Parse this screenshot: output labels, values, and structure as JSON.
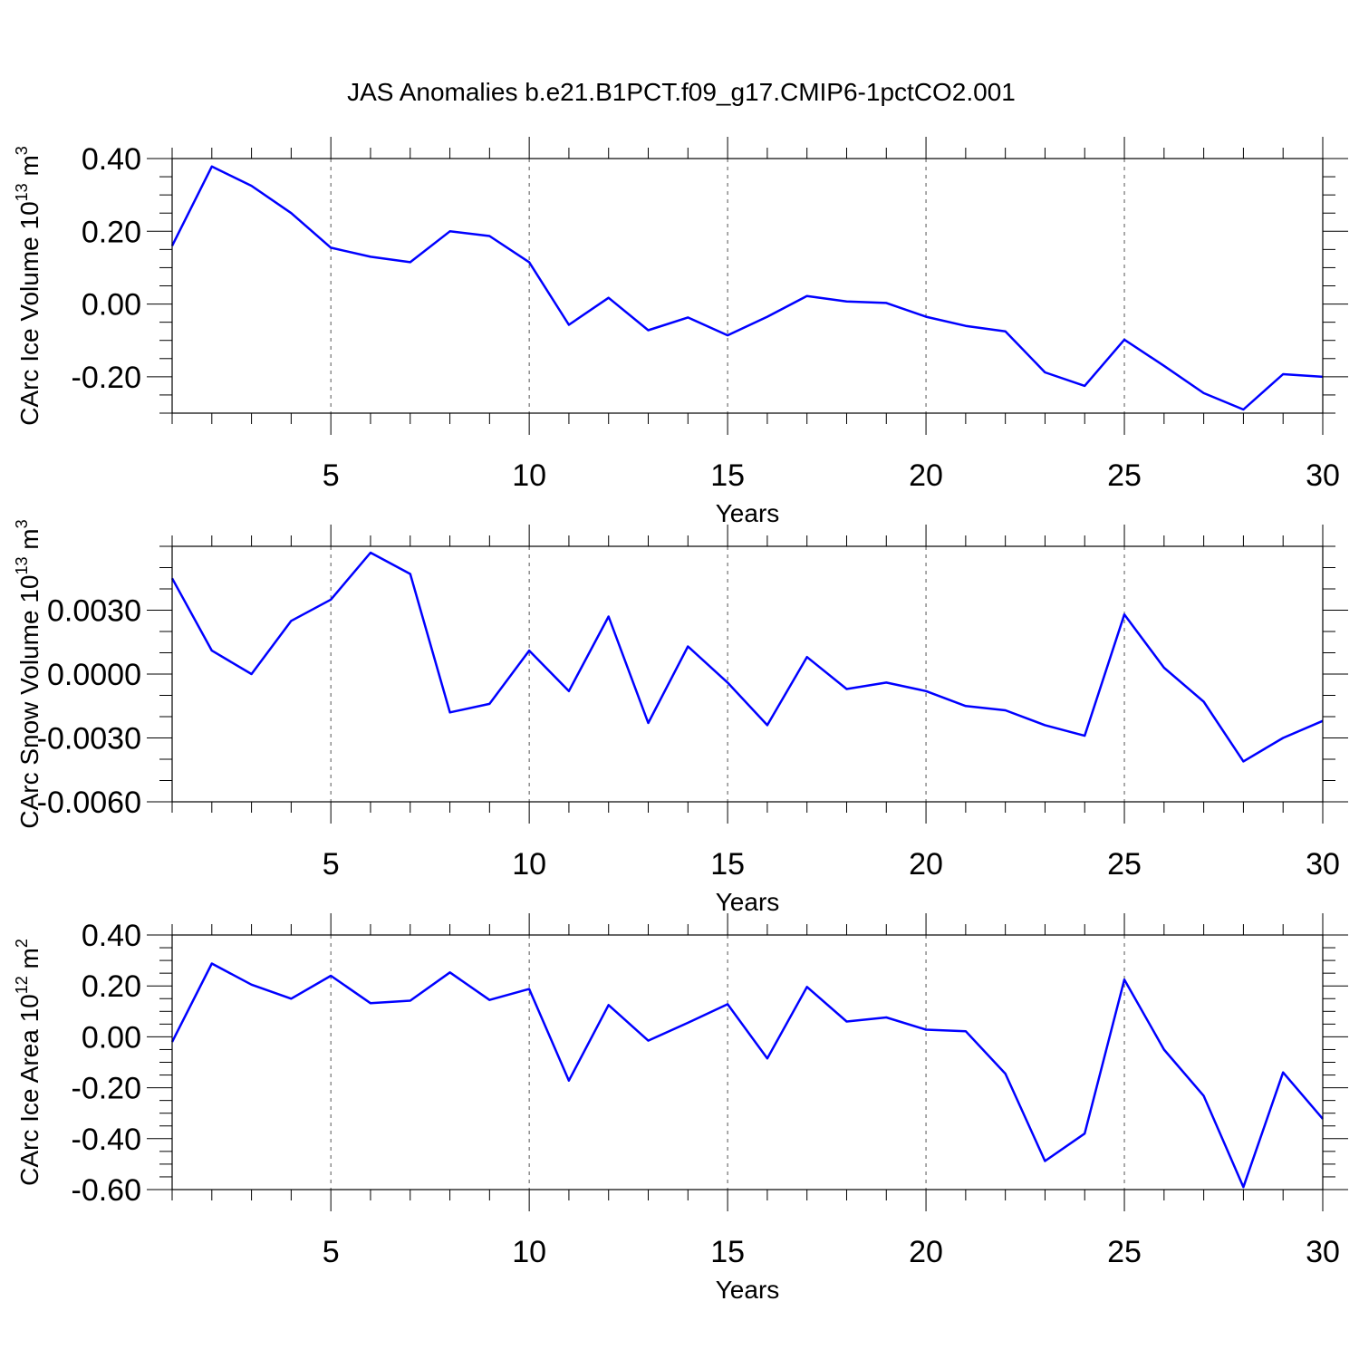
{
  "title": "JAS Anomalies b.e21.B1PCT.f09_g17.CMIP6-1pctCO2.001",
  "colors": {
    "line": "#0000ff",
    "axis": "#000000",
    "grid": "#555555"
  },
  "chart_data": [
    {
      "type": "line",
      "ylabel": "CArc Ice Volume 10",
      "ylabel_exp": "13",
      "ylabel_unit": " m",
      "ylabel_unit_exp": "3",
      "xlabel": "Years",
      "xlim": [
        1,
        30
      ],
      "ylim": [
        -0.3,
        0.4
      ],
      "yticks": [
        -0.2,
        0.0,
        0.2,
        0.4
      ],
      "yticklabels": [
        "-0.20",
        "0.00",
        "0.20",
        "0.40"
      ],
      "yminor": 0.05,
      "xticks": [
        5,
        10,
        15,
        20,
        25,
        30
      ],
      "xticklabels": [
        "5",
        "10",
        "15",
        "20",
        "25",
        "30"
      ],
      "grid": "dashed at major x ticks",
      "x": [
        1,
        2,
        3,
        4,
        5,
        6,
        7,
        8,
        9,
        10,
        11,
        12,
        13,
        14,
        15,
        16,
        17,
        18,
        19,
        20,
        21,
        22,
        23,
        24,
        25,
        26,
        27,
        28,
        29,
        30
      ],
      "series": [
        {
          "values": [
            0.16,
            0.378,
            0.325,
            0.25,
            0.155,
            0.13,
            0.115,
            0.2,
            0.187,
            0.115,
            -0.057,
            0.017,
            -0.072,
            -0.037,
            -0.086,
            -0.035,
            0.022,
            0.007,
            0.003,
            -0.035,
            -0.06,
            -0.075,
            -0.188,
            -0.225,
            -0.098,
            -0.17,
            -0.245,
            -0.29,
            -0.193,
            -0.2
          ]
        }
      ]
    },
    {
      "type": "line",
      "ylabel": "CArc Snow Volume 10",
      "ylabel_exp": "13",
      "ylabel_unit": " m",
      "ylabel_unit_exp": "3",
      "xlabel": "Years",
      "xlim": [
        1,
        30
      ],
      "ylim": [
        -0.006,
        0.006
      ],
      "yticks": [
        -0.006,
        -0.003,
        0.0,
        0.003
      ],
      "yticklabels": [
        "-0.0060",
        "-0.0030",
        "0.0000",
        "0.0030"
      ],
      "yminor": 0.001,
      "xticks": [
        5,
        10,
        15,
        20,
        25,
        30
      ],
      "xticklabels": [
        "5",
        "10",
        "15",
        "20",
        "25",
        "30"
      ],
      "grid": "dashed at major x ticks",
      "x": [
        1,
        2,
        3,
        4,
        5,
        6,
        7,
        8,
        9,
        10,
        11,
        12,
        13,
        14,
        15,
        16,
        17,
        18,
        19,
        20,
        21,
        22,
        23,
        24,
        25,
        26,
        27,
        28,
        29,
        30
      ],
      "series": [
        {
          "values": [
            0.0045,
            0.0011,
            0.0,
            0.0025,
            0.0035,
            0.0057,
            0.0047,
            -0.0018,
            -0.0014,
            0.0011,
            -0.0008,
            0.0027,
            -0.0023,
            0.0013,
            -0.0004,
            -0.0024,
            0.0008,
            -0.0007,
            -0.0004,
            -0.0008,
            -0.0015,
            -0.0017,
            -0.0024,
            -0.0029,
            0.0028,
            0.0003,
            -0.0013,
            -0.0041,
            -0.003,
            -0.0022
          ]
        }
      ]
    },
    {
      "type": "line",
      "ylabel": "CArc Ice Area 10",
      "ylabel_exp": "12",
      "ylabel_unit": " m",
      "ylabel_unit_exp": "2",
      "xlabel": "Years",
      "xlim": [
        1,
        30
      ],
      "ylim": [
        -0.6,
        0.4
      ],
      "yticks": [
        -0.6,
        -0.4,
        -0.2,
        0.0,
        0.2,
        0.4
      ],
      "yticklabels": [
        "-0.60",
        "-0.40",
        "-0.20",
        "0.00",
        "0.20",
        "0.40"
      ],
      "yminor": 0.05,
      "xticks": [
        5,
        10,
        15,
        20,
        25,
        30
      ],
      "xticklabels": [
        "5",
        "10",
        "15",
        "20",
        "25",
        "30"
      ],
      "grid": "dashed at major x ticks",
      "x": [
        1,
        2,
        3,
        4,
        5,
        6,
        7,
        8,
        9,
        10,
        11,
        12,
        13,
        14,
        15,
        16,
        17,
        18,
        19,
        20,
        21,
        22,
        23,
        24,
        25,
        26,
        27,
        28,
        29,
        30
      ],
      "series": [
        {
          "values": [
            -0.02,
            0.288,
            0.205,
            0.15,
            0.24,
            0.132,
            0.142,
            0.253,
            0.145,
            0.188,
            -0.172,
            0.125,
            -0.015,
            0.055,
            0.128,
            -0.085,
            0.196,
            0.06,
            0.076,
            0.028,
            0.022,
            -0.145,
            -0.488,
            -0.38,
            0.225,
            -0.05,
            -0.232,
            -0.59,
            -0.14,
            -0.322
          ]
        }
      ]
    }
  ]
}
